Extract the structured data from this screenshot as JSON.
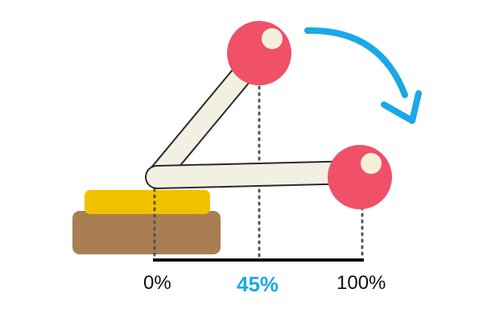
{
  "scale": {
    "labels": [
      "0%",
      "45%",
      "100%"
    ],
    "highlighted_value_percent": 45
  },
  "colors": {
    "arm_fill": "#f1f0e3",
    "arm_stroke": "#2d2a26",
    "knob": "#f05068",
    "knob_highlight": "#f4f0dc",
    "base_top": "#f2c200",
    "base_bottom": "#a97e52",
    "arrow": "#1aa9e6",
    "highlight_label": "#1aa9e6",
    "guide_dots": "#555555",
    "axis": "#111111"
  },
  "icons": {
    "motion_arrow": "curved-arrow-clockwise"
  }
}
